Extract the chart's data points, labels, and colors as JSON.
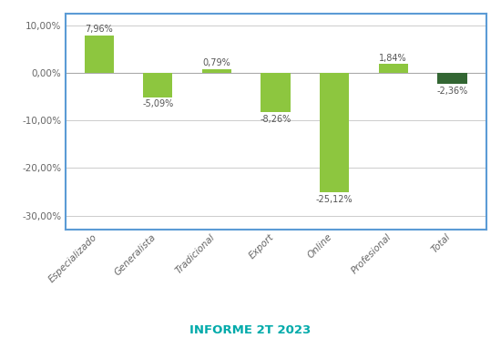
{
  "categories": [
    "Especializado",
    "Generalista",
    "Tradicional",
    "Export",
    "Online",
    "Profesional",
    "Total"
  ],
  "values": [
    7.96,
    -5.09,
    0.79,
    -8.26,
    -25.12,
    1.84,
    -2.36
  ],
  "bar_colors": [
    "#8dc63f",
    "#8dc63f",
    "#8dc63f",
    "#8dc63f",
    "#8dc63f",
    "#8dc63f",
    "#336633"
  ],
  "labels": [
    "7,96%",
    "-5,09%",
    "0,79%",
    "-8,26%",
    "-25,12%",
    "1,84%",
    "-2,36%"
  ],
  "ylim": [
    -33,
    12.5
  ],
  "yticks": [
    10,
    0,
    -10,
    -20,
    -30
  ],
  "ytick_labels": [
    "10,00%",
    "0,00%",
    "-10,00%",
    "-20,00%",
    "-30,00%"
  ],
  "title": "INFORME 2T 2023",
  "title_color": "#00aaaa",
  "background_color": "#ffffff",
  "border_color": "#5b9bd5",
  "grid_color": "#cccccc",
  "bar_width": 0.5
}
